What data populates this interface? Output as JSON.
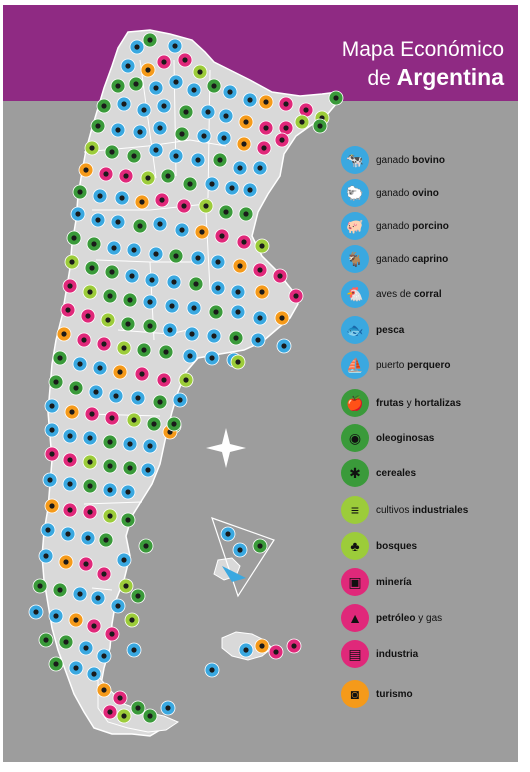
{
  "title": {
    "line1": "Mapa Económico",
    "line2_prefix": "de",
    "line2_bold": "Argentina"
  },
  "colors": {
    "header": "#8f2a83",
    "background": "#9d9d9d",
    "land": "#d9d9d9",
    "blue": "#3aa8e0",
    "green": "#3a9a3a",
    "lime": "#9ccc3a",
    "magenta": "#e0287a",
    "orange": "#f59a1a"
  },
  "legend": [
    {
      "icon": "cow-icon",
      "color": "#3aa8e0",
      "text": "ganado",
      "bold": "bovino"
    },
    {
      "icon": "sheep-icon",
      "color": "#3aa8e0",
      "text": "ganado",
      "bold": "ovino"
    },
    {
      "icon": "pig-icon",
      "color": "#3aa8e0",
      "text": "ganado",
      "bold": "porcino"
    },
    {
      "icon": "goat-icon",
      "color": "#3aa8e0",
      "text": "ganado",
      "bold": "caprino"
    },
    {
      "icon": "hen-icon",
      "color": "#3aa8e0",
      "text": "aves de",
      "bold": "corral"
    },
    {
      "icon": "fish-icon",
      "color": "#3aa8e0",
      "text": "",
      "bold": "pesca"
    },
    {
      "icon": "boat-icon",
      "color": "#3aa8e0",
      "text": "puerto",
      "bold": "perquero"
    },
    {
      "icon": "fruit-icon",
      "color": "#3a9a3a",
      "text": "",
      "bold": "frutas",
      "text2": "y",
      "bold2": "hortalizas"
    },
    {
      "icon": "soy-icon",
      "color": "#3a9a3a",
      "text": "",
      "bold": "oleoginosas"
    },
    {
      "icon": "wheat-icon",
      "color": "#3a9a3a",
      "text": "",
      "bold": "cereales"
    },
    {
      "icon": "field-icon",
      "color": "#9ccc3a",
      "text": "cultivos",
      "bold": "industriales"
    },
    {
      "icon": "tree-icon",
      "color": "#9ccc3a",
      "text": "",
      "bold": "bosques"
    },
    {
      "icon": "mining-cart-icon",
      "color": "#e0287a",
      "text": "",
      "bold": "minería"
    },
    {
      "icon": "oil-derrick-icon",
      "color": "#e0287a",
      "text": "",
      "bold": "petróleo",
      "text2": "y gas"
    },
    {
      "icon": "factory-icon",
      "color": "#e0287a",
      "text": "",
      "bold": "industria"
    },
    {
      "icon": "camera-icon",
      "color": "#f59a1a",
      "text": "",
      "bold": "turismo"
    }
  ]
}
